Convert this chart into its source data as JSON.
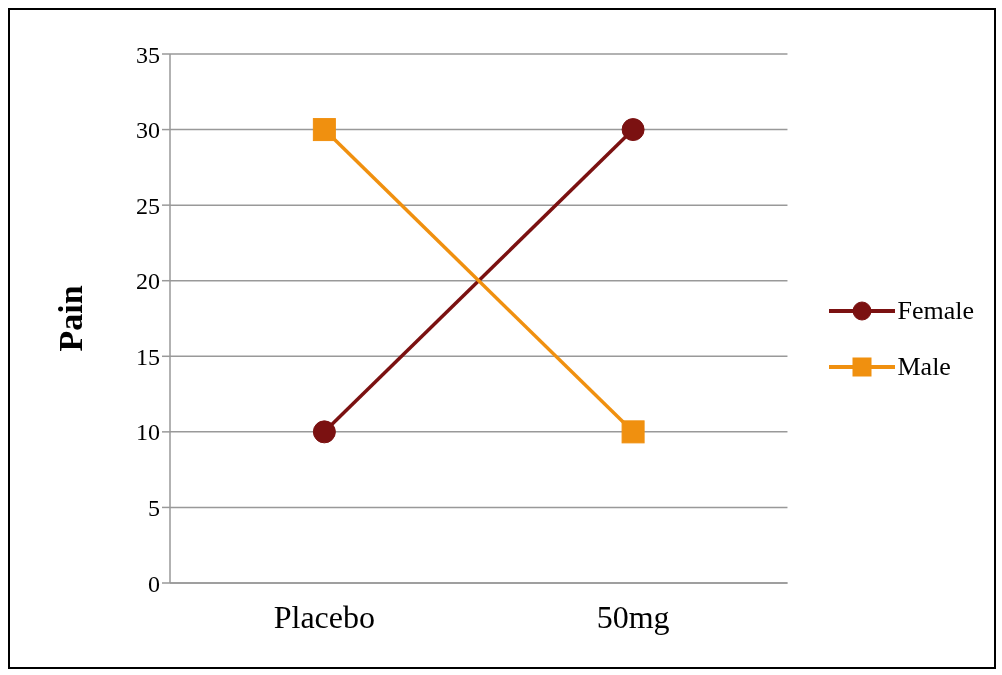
{
  "chart_data": {
    "type": "line",
    "ylabel": "Pain",
    "categories": [
      "Placebo",
      "50mg"
    ],
    "series": [
      {
        "name": "Female",
        "color": "#7b1111",
        "values": [
          10,
          30
        ],
        "marker": "circle"
      },
      {
        "name": "Male",
        "color": "#f0900f",
        "values": [
          30,
          10
        ],
        "marker": "square"
      }
    ],
    "ylim": [
      0,
      35
    ],
    "yticks": [
      0,
      5,
      10,
      15,
      20,
      25,
      30,
      35
    ],
    "grid": "y",
    "legend": "right"
  }
}
